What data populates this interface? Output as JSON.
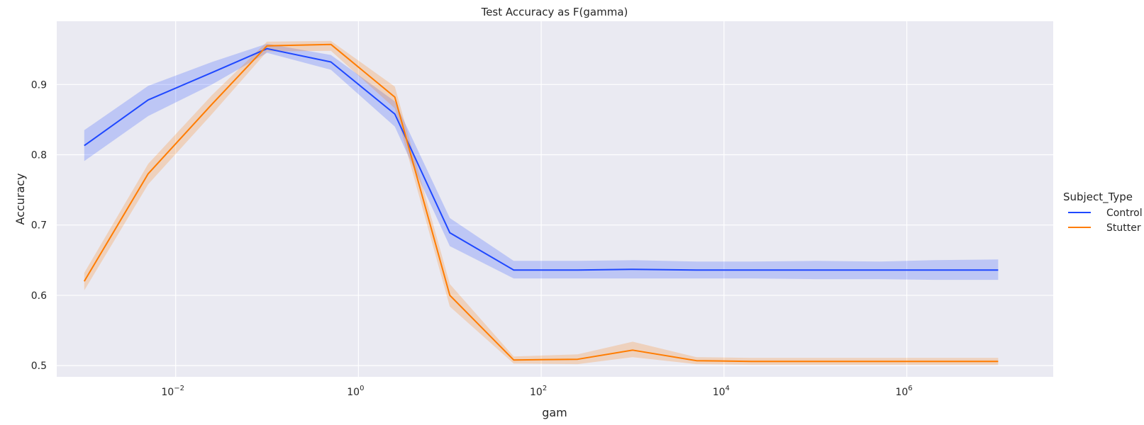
{
  "chart_data": {
    "type": "line",
    "title": "Test Accuracy as F(gamma)",
    "xlabel": "gam",
    "ylabel": "Accuracy",
    "xscale": "log",
    "xlim": [
      0.0005,
      40000000
    ],
    "ylim": [
      0.484,
      0.99
    ],
    "x_ticks": [
      0.01,
      1,
      100,
      10000,
      1000000
    ],
    "x_tick_labels": [
      {
        "base": "10",
        "exp": "−2"
      },
      {
        "base": "10",
        "exp": "0"
      },
      {
        "base": "10",
        "exp": "2"
      },
      {
        "base": "10",
        "exp": "4"
      },
      {
        "base": "10",
        "exp": "6"
      }
    ],
    "y_ticks": [
      0.5,
      0.6,
      0.7,
      0.8,
      0.9
    ],
    "y_tick_labels": [
      "0.5",
      "0.6",
      "0.7",
      "0.8",
      "0.9"
    ],
    "grid": true,
    "background_color": "#eaeaf2",
    "legend": {
      "title": "Subject_Type",
      "placement": "right"
    },
    "x": [
      0.001,
      0.005,
      0.025,
      0.1,
      0.5,
      2.5,
      10,
      50,
      250,
      1000,
      5000,
      20000,
      100000,
      500000,
      2000000,
      10000000
    ],
    "series": [
      {
        "name": "Control",
        "color": "#1f48ff",
        "values": [
          0.813,
          0.878,
          0.917,
          0.951,
          0.932,
          0.858,
          0.689,
          0.636,
          0.636,
          0.637,
          0.636,
          0.636,
          0.636,
          0.636,
          0.636,
          0.636
        ],
        "ci_lower": [
          0.791,
          0.855,
          0.9,
          0.945,
          0.921,
          0.84,
          0.67,
          0.624,
          0.624,
          0.624,
          0.624,
          0.624,
          0.623,
          0.623,
          0.622,
          0.622
        ],
        "ci_upper": [
          0.835,
          0.898,
          0.932,
          0.958,
          0.942,
          0.876,
          0.71,
          0.649,
          0.649,
          0.65,
          0.648,
          0.648,
          0.649,
          0.648,
          0.65,
          0.651
        ]
      },
      {
        "name": "Stutter",
        "color": "#ff7c00",
        "values": [
          0.62,
          0.773,
          0.872,
          0.955,
          0.957,
          0.882,
          0.6,
          0.508,
          0.509,
          0.522,
          0.507,
          0.506,
          0.506,
          0.506,
          0.506,
          0.506
        ],
        "ci_lower": [
          0.607,
          0.758,
          0.858,
          0.947,
          0.948,
          0.866,
          0.584,
          0.503,
          0.502,
          0.512,
          0.502,
          0.501,
          0.501,
          0.501,
          0.501,
          0.501
        ],
        "ci_upper": [
          0.632,
          0.787,
          0.885,
          0.961,
          0.962,
          0.897,
          0.616,
          0.513,
          0.516,
          0.534,
          0.512,
          0.511,
          0.511,
          0.511,
          0.511,
          0.511
        ]
      }
    ]
  }
}
